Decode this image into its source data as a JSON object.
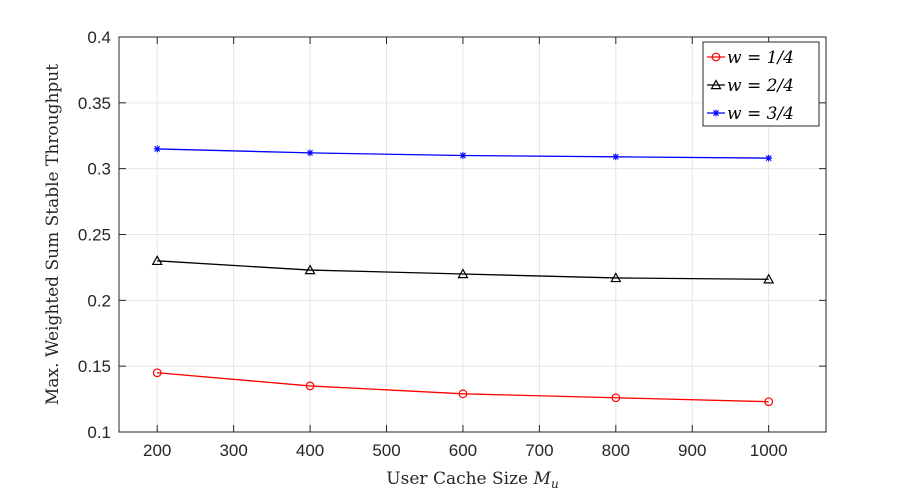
{
  "chart_data": {
    "type": "line",
    "xlabel": "User Cache Size",
    "xlabel_symbol": "M",
    "xlabel_subscript": "u",
    "ylabel": "Max. Weighted Sum Stable Throughput",
    "xlim": [
      150,
      1075
    ],
    "ylim": [
      0.1,
      0.4
    ],
    "xticks": [
      200,
      300,
      400,
      500,
      600,
      700,
      800,
      900,
      1000
    ],
    "yticks": [
      0.1,
      0.15,
      0.2,
      0.25,
      0.3,
      0.35,
      0.4
    ],
    "xtick_labels": [
      "200",
      "300",
      "400",
      "500",
      "600",
      "700",
      "800",
      "900",
      "1000"
    ],
    "ytick_labels": [
      "0.1",
      "0.15",
      "0.2",
      "0.25",
      "0.3",
      "0.35",
      "0.4"
    ],
    "grid": true,
    "legend_position": "top-right",
    "x": [
      200,
      400,
      600,
      800,
      1000
    ],
    "series": [
      {
        "name": "w = 1/4",
        "color": "#ff0000",
        "marker": "circle",
        "values": [
          0.145,
          0.135,
          0.129,
          0.126,
          0.123
        ]
      },
      {
        "name": "w = 2/4",
        "color": "#000000",
        "marker": "triangle",
        "values": [
          0.23,
          0.223,
          0.22,
          0.217,
          0.216
        ]
      },
      {
        "name": "w = 3/4",
        "color": "#0000ff",
        "marker": "asterisk",
        "values": [
          0.315,
          0.312,
          0.31,
          0.309,
          0.308
        ]
      }
    ]
  }
}
